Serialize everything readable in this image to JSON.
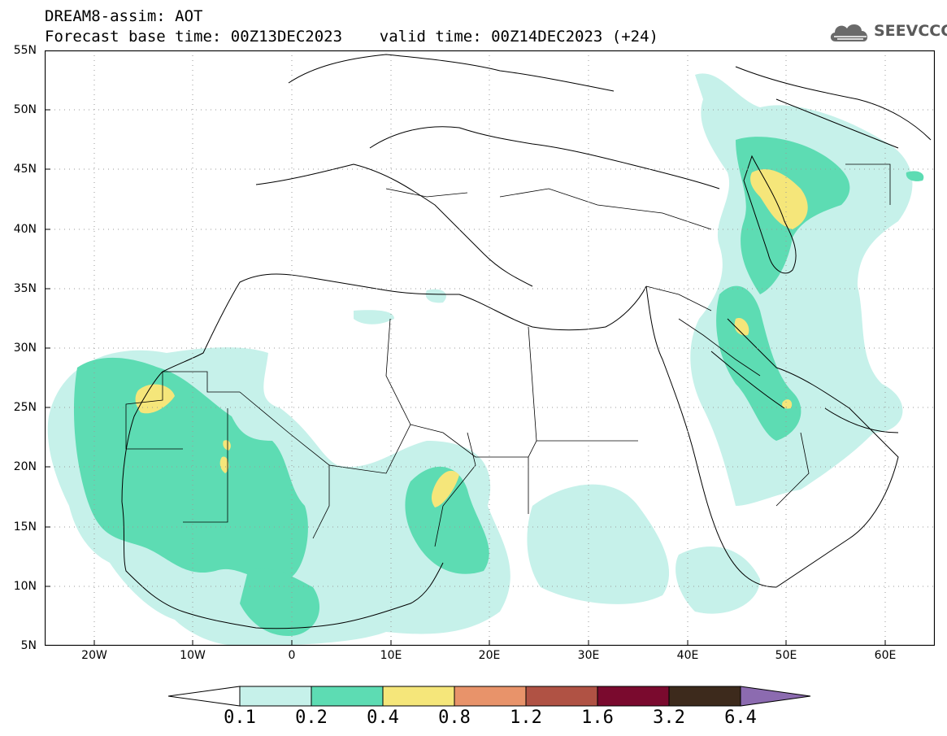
{
  "title": {
    "line1": "DREAM8-assim: AOT",
    "line2": "Forecast base time: 00Z13DEC2023    valid time: 00Z14DEC2023 (+24)"
  },
  "logo": {
    "text": "SEEVCCC",
    "icon": "cloud-icon"
  },
  "map": {
    "lat_labels": [
      "55N",
      "50N",
      "45N",
      "40N",
      "35N",
      "30N",
      "25N",
      "20N",
      "15N",
      "10N",
      "5N"
    ],
    "lon_labels": [
      "20W",
      "10W",
      "0",
      "10E",
      "20E",
      "30E",
      "40E",
      "50E",
      "60E"
    ],
    "lon_range": [
      -25,
      65
    ],
    "lat_range": [
      5,
      55
    ],
    "grid": "dotted"
  },
  "colorbar": {
    "labels": [
      "0.1",
      "0.2",
      "0.4",
      "0.8",
      "1.2",
      "1.6",
      "3.2",
      "6.4"
    ],
    "colors": [
      "#ffffff",
      "#c6f1ea",
      "#5ddcb3",
      "#f5e67a",
      "#e8936a",
      "#b05244",
      "#7a0a2e",
      "#3d2a1c",
      "#8c6bb0"
    ]
  }
}
